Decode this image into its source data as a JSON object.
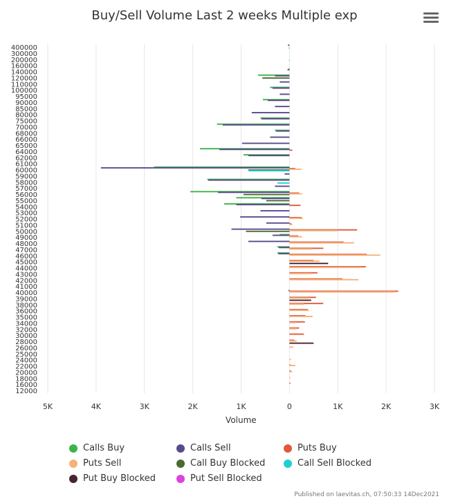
{
  "header": {
    "menu_icon": "hamburger-menu-icon"
  },
  "credits": "Published on laevitas.ch, 07:50:33 14Dec2021",
  "chart_data": {
    "type": "bar",
    "orientation": "horizontal",
    "title": "Buy/Sell Volume Last 2 weeks Multiple exp",
    "xlabel": "Volume",
    "ylabel": "",
    "xlim": [
      -5000,
      3000
    ],
    "x_ticks": [
      -5000,
      -4000,
      -3000,
      -2000,
      -1000,
      0,
      1000,
      2000,
      3000
    ],
    "x_tick_labels": [
      "5K",
      "4K",
      "3K",
      "2K",
      "1K",
      "0",
      "1K",
      "2K",
      "3K"
    ],
    "grid": true,
    "legend_position": "bottom",
    "categories": [
      "400000",
      "300000",
      "200000",
      "160000",
      "140000",
      "120000",
      "110000",
      "100000",
      "95000",
      "90000",
      "85000",
      "80000",
      "75000",
      "70000",
      "68000",
      "66000",
      "65000",
      "64000",
      "62000",
      "61000",
      "60000",
      "59000",
      "58000",
      "57000",
      "56000",
      "55000",
      "54000",
      "53000",
      "52000",
      "51000",
      "50000",
      "49000",
      "48000",
      "47000",
      "46000",
      "45000",
      "44000",
      "43000",
      "42000",
      "41000",
      "40000",
      "39000",
      "38000",
      "36000",
      "35000",
      "34000",
      "32000",
      "30000",
      "28000",
      "26000",
      "25000",
      "24000",
      "22000",
      "20000",
      "18000",
      "16000",
      "12000"
    ],
    "series": [
      {
        "name": "Calls Buy",
        "color": "#3cb44b",
        "values": [
          0,
          0,
          0,
          0,
          -20,
          -650,
          0,
          -400,
          0,
          -550,
          0,
          0,
          -600,
          -1500,
          -300,
          0,
          0,
          -1850,
          -950,
          0,
          -2800,
          0,
          -1700,
          0,
          -2050,
          -1100,
          -1350,
          0,
          0,
          0,
          0,
          -200,
          0,
          -250,
          -250,
          0,
          0,
          0,
          0,
          0,
          0,
          0,
          0,
          0,
          0,
          0,
          0,
          0,
          0,
          0,
          0,
          0,
          0,
          0,
          0,
          0,
          0
        ]
      },
      {
        "name": "Calls Sell",
        "color": "#5a4a8c",
        "values": [
          -30,
          0,
          0,
          0,
          -40,
          -300,
          -200,
          -350,
          -200,
          -450,
          -300,
          -780,
          -580,
          -1380,
          -280,
          -400,
          -980,
          -1450,
          -850,
          0,
          -3900,
          -100,
          -1680,
          -300,
          -1480,
          -580,
          -1100,
          -600,
          -1020,
          -480,
          -1200,
          -350,
          -850,
          -220,
          -230,
          0,
          0,
          0,
          0,
          0,
          -20,
          0,
          0,
          0,
          0,
          0,
          0,
          0,
          0,
          0,
          0,
          0,
          0,
          0,
          0,
          0,
          0
        ]
      },
      {
        "name": "Puts Buy",
        "color": "#e05a3a",
        "values": [
          0,
          0,
          0,
          0,
          0,
          0,
          0,
          0,
          0,
          0,
          0,
          0,
          0,
          0,
          0,
          0,
          0,
          60,
          0,
          0,
          120,
          0,
          0,
          0,
          200,
          0,
          230,
          0,
          250,
          40,
          1400,
          180,
          1120,
          700,
          1600,
          500,
          1580,
          580,
          1100,
          0,
          2250,
          550,
          700,
          380,
          330,
          320,
          200,
          300,
          100,
          0,
          0,
          0,
          20,
          30,
          0,
          20,
          0
        ]
      },
      {
        "name": "Puts Sell",
        "color": "#f5b27a",
        "values": [
          0,
          0,
          0,
          0,
          0,
          0,
          0,
          0,
          0,
          0,
          0,
          0,
          0,
          0,
          0,
          0,
          0,
          0,
          0,
          0,
          250,
          0,
          0,
          0,
          260,
          0,
          0,
          0,
          280,
          60,
          1000,
          260,
          1340,
          480,
          1880,
          620,
          1500,
          450,
          1430,
          0,
          2180,
          400,
          300,
          400,
          480,
          120,
          150,
          0,
          150,
          80,
          0,
          30,
          120,
          60,
          20,
          0,
          0
        ]
      },
      {
        "name": "Call Buy Blocked",
        "color": "#4a6b2e",
        "values": [
          0,
          0,
          0,
          0,
          0,
          -560,
          0,
          0,
          0,
          0,
          0,
          0,
          0,
          0,
          0,
          0,
          0,
          0,
          0,
          0,
          -850,
          0,
          0,
          0,
          -950,
          -480,
          0,
          0,
          0,
          0,
          -900,
          0,
          0,
          0,
          0,
          0,
          0,
          0,
          0,
          0,
          0,
          0,
          0,
          0,
          0,
          0,
          0,
          0,
          0,
          0,
          0,
          0,
          0,
          0,
          0,
          0,
          0
        ]
      },
      {
        "name": "Call Sell Blocked",
        "color": "#1fcfcf",
        "values": [
          -15,
          0,
          -10,
          0,
          0,
          0,
          0,
          0,
          0,
          0,
          0,
          0,
          0,
          0,
          0,
          0,
          0,
          0,
          0,
          0,
          -850,
          0,
          -250,
          0,
          0,
          0,
          0,
          0,
          0,
          0,
          0,
          0,
          0,
          0,
          0,
          0,
          0,
          0,
          0,
          0,
          0,
          0,
          0,
          0,
          0,
          0,
          0,
          0,
          0,
          0,
          0,
          0,
          0,
          0,
          0,
          0,
          0
        ]
      },
      {
        "name": "Put Buy Blocked",
        "color": "#4a2330",
        "values": [
          0,
          0,
          0,
          0,
          0,
          0,
          0,
          0,
          0,
          0,
          0,
          0,
          0,
          0,
          0,
          0,
          0,
          0,
          0,
          0,
          0,
          0,
          0,
          0,
          0,
          0,
          0,
          0,
          0,
          0,
          0,
          0,
          0,
          0,
          0,
          800,
          0,
          0,
          0,
          0,
          0,
          450,
          0,
          0,
          0,
          0,
          0,
          0,
          500,
          0,
          0,
          0,
          0,
          0,
          0,
          0,
          0
        ]
      },
      {
        "name": "Put Sell Blocked",
        "color": "#e040e0",
        "values": [
          0,
          0,
          0,
          0,
          0,
          0,
          0,
          0,
          0,
          0,
          0,
          0,
          0,
          0,
          0,
          0,
          0,
          0,
          0,
          0,
          0,
          0,
          0,
          0,
          0,
          0,
          0,
          0,
          0,
          0,
          0,
          0,
          0,
          0,
          0,
          0,
          0,
          0,
          0,
          0,
          0,
          0,
          0,
          0,
          0,
          0,
          0,
          0,
          0,
          0,
          0,
          0,
          0,
          0,
          0,
          0,
          0
        ]
      }
    ]
  }
}
